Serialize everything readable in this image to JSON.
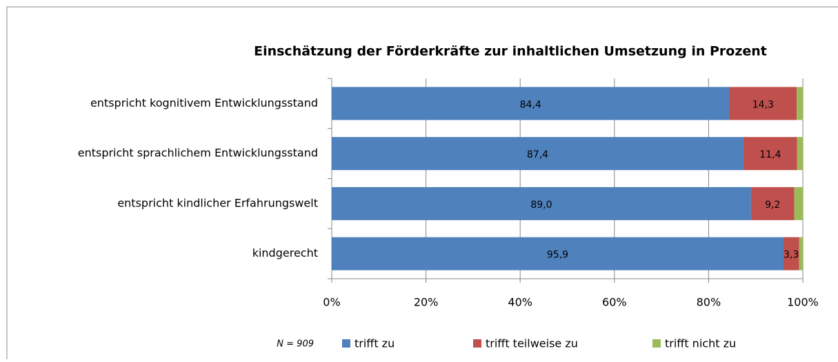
{
  "chart_data": {
    "type": "stacked-bar-horizontal",
    "title": "Einschätzung der Förderkräfte zur inhaltlichen Umsetzung in Prozent",
    "categories": [
      "entspricht kognitivem Entwicklungsstand",
      "entspricht sprachlichem Entwicklungsstand",
      "entspricht kindlicher Erfahrungswelt",
      "kindgerecht"
    ],
    "series": [
      {
        "name": "trifft zu",
        "color": "#4f81bd",
        "values": [
          84.4,
          87.4,
          89.0,
          95.9
        ],
        "value_labels": [
          "84,4",
          "87,4",
          "89,0",
          "95,9"
        ]
      },
      {
        "name": "trifft teilweise zu",
        "color": "#c0504d",
        "values": [
          14.3,
          11.4,
          9.2,
          3.3
        ],
        "value_labels": [
          "14,3",
          "11,4",
          "9,2",
          "3,3"
        ]
      },
      {
        "name": "trifft nicht zu",
        "color": "#9bbb59",
        "values": [
          1.3,
          1.2,
          1.8,
          0.8
        ]
      }
    ],
    "xlim": [
      0,
      100
    ],
    "xticks": [
      {
        "value": 0,
        "label": "0%"
      },
      {
        "value": 20,
        "label": "20%"
      },
      {
        "value": 40,
        "label": "40%"
      },
      {
        "value": 60,
        "label": "60%"
      },
      {
        "value": 80,
        "label": "80%"
      },
      {
        "value": 100,
        "label": "100%"
      }
    ],
    "grid": true,
    "annotation": "N = 909",
    "legend": "bottom"
  }
}
